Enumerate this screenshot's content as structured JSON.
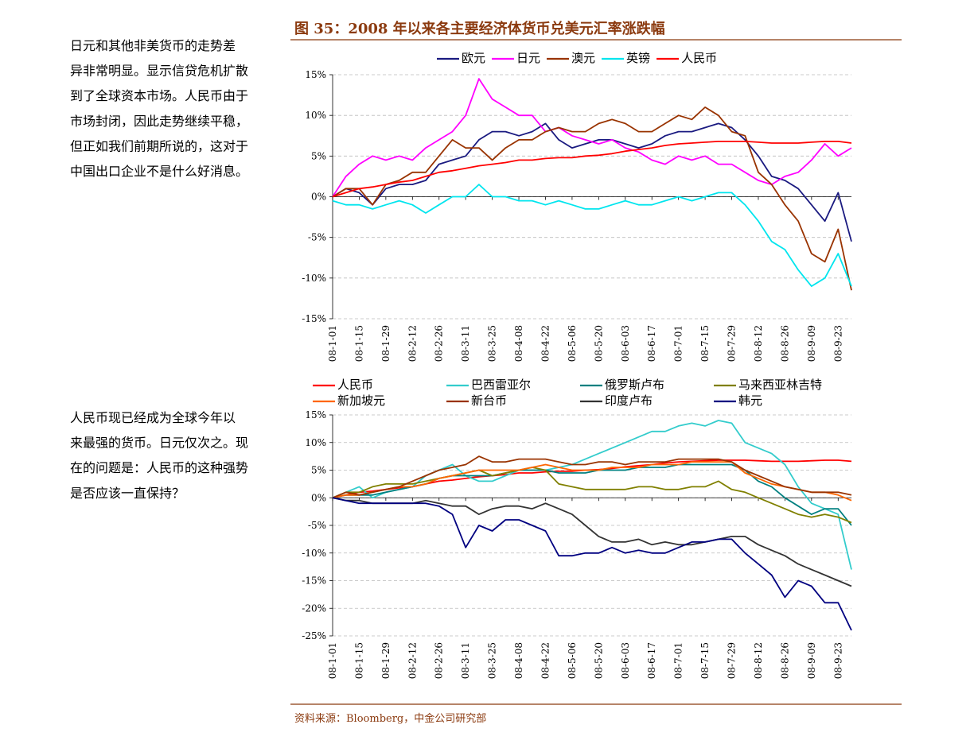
{
  "title": "图 35：2008 年以来各主要经济体货币兑美元汇率涨跌幅",
  "source": "资料来源：Bloomberg，中金公司研究部",
  "notes": [
    [
      "日元和其他非美货币的走势差",
      "异非常明显。显示信贷危机扩散",
      "到了全球资本市场。人民币由于",
      "市场封闭，因此走势继续平稳，",
      "但正如我们前期所说的，这对于",
      "中国出口企业不是什么好消息。"
    ],
    [
      "人民币现已经成为全球今年以",
      "来最强的货币。日元仅次之。现",
      "在的问题是：人民币的这种强势",
      "是否应该一直保持？"
    ]
  ],
  "chart_data": [
    {
      "type": "line",
      "categories": [
        "08-1-01",
        null,
        "08-1-15",
        null,
        "08-1-29",
        null,
        "08-2-12",
        null,
        "08-2-26",
        null,
        "08-3-11",
        null,
        "08-3-25",
        null,
        "08-4-08",
        null,
        "08-4-22",
        null,
        "08-5-06",
        null,
        "08-5-20",
        null,
        "08-6-03",
        null,
        "08-6-17",
        null,
        "08-7-01",
        null,
        "08-7-15",
        null,
        "08-7-29",
        null,
        "08-8-12",
        null,
        "08-8-26",
        null,
        "08-9-09",
        null,
        "08-9-23",
        null
      ],
      "ylim": [
        -15,
        15
      ],
      "yticks": [
        {
          "value": -15,
          "label": "-15%"
        },
        {
          "value": -10,
          "label": "-10%"
        },
        {
          "value": -5,
          "label": "-5%"
        },
        {
          "value": 0,
          "label": "0%"
        },
        {
          "value": 5,
          "label": "5%"
        },
        {
          "value": 10,
          "label": "10%"
        },
        {
          "value": 15,
          "label": "15%"
        }
      ],
      "grid": true,
      "series": [
        {
          "name": "欧元",
          "color": "#1a1a80",
          "values": [
            0,
            1,
            0.5,
            -1,
            1,
            1.5,
            1.5,
            2,
            4,
            4.5,
            5,
            7,
            8,
            8,
            7.5,
            8,
            9,
            7,
            6,
            6.5,
            7,
            7,
            6.5,
            6,
            6.5,
            7.5,
            8,
            8,
            8.5,
            9,
            8.5,
            7,
            5,
            2.5,
            2,
            1,
            -1,
            -3,
            0.5,
            -5.5
          ]
        },
        {
          "name": "日元",
          "color": "#ff00ff",
          "values": [
            0,
            2.5,
            4,
            5,
            4.5,
            5,
            4.5,
            6,
            7,
            8,
            10,
            14.5,
            12,
            11,
            10,
            10,
            8,
            8.5,
            7.5,
            7,
            6.5,
            7,
            6,
            5.5,
            4.5,
            4,
            5,
            4.5,
            5,
            4,
            4,
            3,
            2,
            1.5,
            2.5,
            3,
            4.5,
            6.5,
            5,
            6
          ]
        },
        {
          "name": "澳元",
          "color": "#993300",
          "values": [
            0,
            1,
            1,
            -1,
            1.5,
            2,
            3,
            3,
            5,
            7,
            6,
            6,
            4.5,
            6,
            7,
            7,
            8,
            8.5,
            8,
            8,
            9,
            9.5,
            9,
            8,
            8,
            9,
            10,
            9.5,
            11,
            10,
            8,
            7.5,
            3,
            1.5,
            -1,
            -3,
            -7,
            -8,
            -4,
            -11.5
          ]
        },
        {
          "name": "英镑",
          "color": "#00e5ee",
          "values": [
            -0.5,
            -1,
            -1,
            -1.5,
            -1,
            -0.5,
            -1,
            -2,
            -1,
            0,
            0,
            1.5,
            0,
            0,
            -0.5,
            -0.5,
            -1,
            -0.5,
            -1,
            -1.5,
            -1.5,
            -1,
            -0.5,
            -1,
            -1,
            -0.5,
            0,
            -0.5,
            0,
            0.5,
            0.5,
            -1,
            -3,
            -5.5,
            -6.5,
            -9,
            -11,
            -10,
            -7,
            -11
          ]
        },
        {
          "name": "人民币",
          "color": "#ff0000",
          "values": [
            0,
            0.5,
            1,
            1.2,
            1.5,
            1.8,
            2,
            2.5,
            3,
            3.2,
            3.5,
            3.8,
            4,
            4.2,
            4.5,
            4.5,
            4.7,
            4.8,
            4.8,
            5,
            5.1,
            5.3,
            5.6,
            5.8,
            6,
            6.3,
            6.5,
            6.6,
            6.7,
            6.8,
            6.8,
            6.8,
            6.7,
            6.6,
            6.6,
            6.6,
            6.7,
            6.8,
            6.8,
            6.6
          ]
        }
      ]
    },
    {
      "type": "line",
      "categories": [
        "08-1-01",
        null,
        "08-1-15",
        null,
        "08-1-29",
        null,
        "08-2-12",
        null,
        "08-2-26",
        null,
        "08-3-11",
        null,
        "08-3-25",
        null,
        "08-4-08",
        null,
        "08-4-22",
        null,
        "08-5-06",
        null,
        "08-5-20",
        null,
        "08-6-03",
        null,
        "08-6-17",
        null,
        "08-7-01",
        null,
        "08-7-15",
        null,
        "08-7-29",
        null,
        "08-8-12",
        null,
        "08-8-26",
        null,
        "08-9-09",
        null,
        "08-9-23",
        null
      ],
      "ylim": [
        -25,
        15
      ],
      "yticks": [
        {
          "value": -25,
          "label": "-25%"
        },
        {
          "value": -20,
          "label": "-20%"
        },
        {
          "value": -15,
          "label": "-15%"
        },
        {
          "value": -10,
          "label": "-10%"
        },
        {
          "value": -5,
          "label": "-5%"
        },
        {
          "value": 0,
          "label": "0%"
        },
        {
          "value": 5,
          "label": "5%"
        },
        {
          "value": 10,
          "label": "10%"
        },
        {
          "value": 15,
          "label": "15%"
        }
      ],
      "grid": true,
      "series": [
        {
          "name": "人民币",
          "color": "#ff0000",
          "values": [
            0,
            0.5,
            1,
            1.2,
            1.5,
            1.8,
            2,
            2.5,
            3,
            3.2,
            3.5,
            3.8,
            4,
            4.2,
            4.5,
            4.5,
            4.7,
            4.8,
            4.8,
            5,
            5.1,
            5.3,
            5.6,
            5.8,
            6,
            6.3,
            6.5,
            6.6,
            6.7,
            6.8,
            6.8,
            6.8,
            6.7,
            6.6,
            6.6,
            6.6,
            6.7,
            6.8,
            6.8,
            6.6
          ]
        },
        {
          "name": "巴西雷亚尔",
          "color": "#33cccc",
          "values": [
            0,
            1,
            2,
            0,
            1,
            1.5,
            2,
            4,
            5,
            6,
            4,
            3,
            3,
            4,
            5,
            5,
            5,
            5.5,
            6,
            7,
            8,
            9,
            10,
            11,
            12,
            12,
            13,
            13.5,
            13,
            14,
            13.5,
            10,
            9,
            8,
            6,
            2,
            -1,
            -2,
            -3,
            -13
          ]
        },
        {
          "name": "俄罗斯卢布",
          "color": "#008080",
          "values": [
            0,
            0.5,
            0.5,
            0.5,
            1,
            1.5,
            2,
            2.5,
            3.5,
            4,
            4,
            4,
            4,
            4.5,
            5,
            5,
            5,
            4.5,
            4.5,
            4.5,
            5,
            5,
            5,
            5.5,
            5.5,
            5.5,
            6,
            6,
            6,
            6,
            6,
            5,
            3,
            2,
            0,
            -1.5,
            -3,
            -2,
            -2,
            -5
          ]
        },
        {
          "name": "马来西亚林吉特",
          "color": "#808000",
          "values": [
            0,
            1,
            1,
            2,
            2.5,
            2.5,
            2.5,
            3,
            3.5,
            4,
            4.5,
            5,
            4,
            4.5,
            5,
            5.5,
            5,
            2.5,
            2,
            1.5,
            1.5,
            1.5,
            1.5,
            2,
            2,
            1.5,
            1.5,
            2,
            2,
            3,
            1.5,
            1,
            0,
            -1,
            -2,
            -3,
            -3.5,
            -3,
            -3.5,
            -4.5
          ]
        },
        {
          "name": "新加坡元",
          "color": "#ff6600",
          "values": [
            0,
            0.5,
            0.5,
            1,
            1.5,
            2,
            2,
            2.5,
            3.5,
            4,
            4.5,
            5,
            5,
            5,
            5,
            5.5,
            6,
            5.5,
            5,
            5,
            5,
            5.5,
            5.5,
            5.5,
            6,
            6,
            6,
            6.5,
            6.5,
            6.5,
            6.5,
            4.5,
            3.5,
            2.5,
            2,
            1.5,
            1,
            1,
            0.5,
            -0.5
          ]
        },
        {
          "name": "新台币",
          "color": "#993300",
          "values": [
            0,
            1,
            0.5,
            1,
            1.5,
            2,
            3,
            4,
            5,
            5.5,
            6,
            7.5,
            6.5,
            6.5,
            7,
            7,
            7,
            6.5,
            6,
            6,
            6.5,
            6.5,
            6,
            6.5,
            6.5,
            6.5,
            7,
            7,
            7,
            7,
            6.5,
            5,
            4,
            3,
            2,
            1.5,
            1,
            1,
            1,
            0.5
          ]
        },
        {
          "name": "印度卢布",
          "color": "#333333",
          "values": [
            0,
            -0.5,
            -0.5,
            -1,
            -1,
            -1,
            -1,
            -0.5,
            -1,
            -1.5,
            -1.5,
            -3,
            -2,
            -1.5,
            -1.5,
            -2,
            -1,
            -2,
            -3,
            -5,
            -7,
            -8,
            -8,
            -7.5,
            -8.5,
            -8,
            -8.5,
            -8.5,
            -8,
            -7.5,
            -7,
            -7,
            -8.5,
            -9.5,
            -10.5,
            -12,
            -13,
            -14,
            -15,
            -16
          ]
        },
        {
          "name": "韩元",
          "color": "#000080",
          "values": [
            0,
            -0.5,
            -1,
            -1,
            -1,
            -1,
            -1,
            -1,
            -1.5,
            -3,
            -9,
            -5,
            -6,
            -4,
            -4,
            -5,
            -6,
            -10.5,
            -10.5,
            -10,
            -10,
            -9,
            -10,
            -9.5,
            -10,
            -10,
            -9,
            -8,
            -8,
            -7.5,
            -7.5,
            -10,
            -12,
            -14,
            -18,
            -15,
            -16,
            -19,
            -19,
            -24
          ]
        }
      ]
    }
  ]
}
